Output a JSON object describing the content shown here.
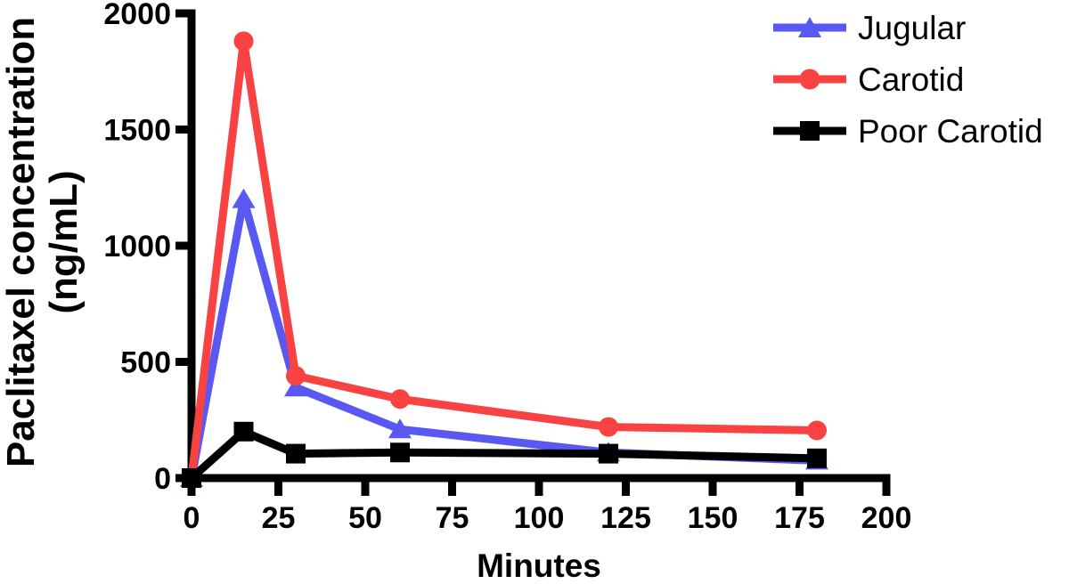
{
  "chart_data": {
    "type": "line",
    "xlabel": "Minutes",
    "ylabel_lines": [
      "Paclitaxel concentration",
      "(ng/mL)"
    ],
    "xlim": [
      0,
      200
    ],
    "ylim": [
      0,
      2000
    ],
    "x_ticks": [
      0,
      25,
      50,
      75,
      100,
      125,
      150,
      175,
      200
    ],
    "y_ticks": [
      0,
      500,
      1000,
      1500,
      2000
    ],
    "grid": false,
    "legend_position": "top-right",
    "axis_color": "#000000",
    "background_color": "#FFFFFF",
    "x": [
      0,
      15,
      30,
      60,
      120,
      180
    ],
    "series": [
      {
        "name": "Jugular",
        "color": "#5A58F2",
        "marker": "triangle",
        "values": [
          0,
          1200,
          390,
          210,
          110,
          75
        ]
      },
      {
        "name": "Carotid",
        "color": "#F94242",
        "marker": "circle",
        "values": [
          0,
          1880,
          440,
          340,
          220,
          205
        ]
      },
      {
        "name": "Poor Carotid",
        "color": "#000000",
        "marker": "square",
        "values": [
          0,
          200,
          105,
          110,
          105,
          85
        ]
      }
    ]
  }
}
